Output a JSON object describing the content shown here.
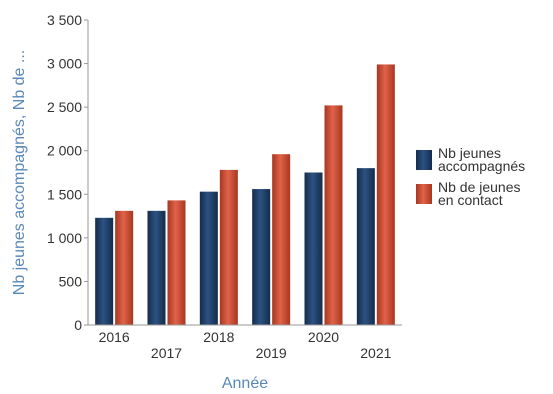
{
  "chart_data": {
    "type": "bar",
    "categories": [
      "2016",
      "2017",
      "2018",
      "2019",
      "2020",
      "2021"
    ],
    "series": [
      {
        "name": "Nb jeunes accompagnés",
        "color": "#1f3f66",
        "values": [
          1230,
          1310,
          1530,
          1560,
          1750,
          1800
        ]
      },
      {
        "name": "Nb de jeunes en contact",
        "color": "#c84a34",
        "values": [
          1310,
          1430,
          1780,
          1960,
          2520,
          2990
        ]
      }
    ],
    "xlabel": "Année",
    "ylabel": "Nb jeunes accompagnés, Nb de ...",
    "ylim": [
      0,
      3500
    ],
    "yticks": [
      {
        "value": 0,
        "label": "0"
      },
      {
        "value": 500,
        "label": "500"
      },
      {
        "value": 1000,
        "label": "1 000"
      },
      {
        "value": 1500,
        "label": "1 500"
      },
      {
        "value": 2000,
        "label": "2 000"
      },
      {
        "value": 2500,
        "label": "2 500"
      },
      {
        "value": 3000,
        "label": "3 000"
      },
      {
        "value": 3500,
        "label": "3 500"
      }
    ],
    "legend": {
      "placement": "right",
      "entries": [
        [
          "Nb jeunes",
          "accompagnés"
        ],
        [
          "Nb de jeunes",
          "en contact"
        ]
      ]
    },
    "grid": false
  }
}
